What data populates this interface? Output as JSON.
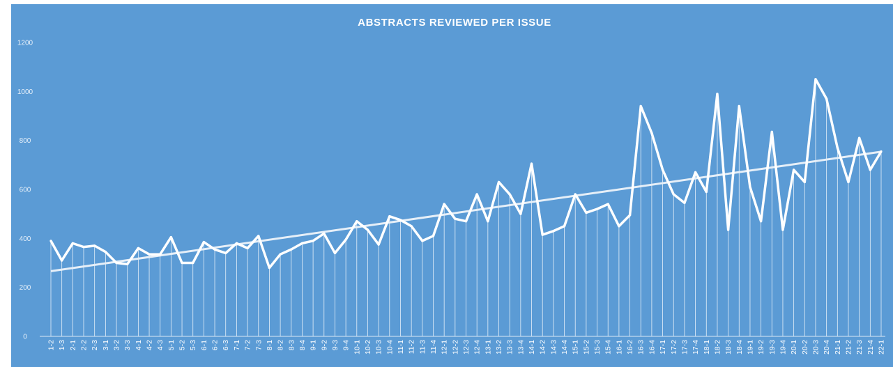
{
  "chart_data": {
    "type": "line",
    "title": "ABSTRACTS REVIEWED PER ISSUE",
    "xlabel": "",
    "ylabel": "",
    "ylim": [
      0,
      1200
    ],
    "yticks": [
      0,
      200,
      400,
      600,
      800,
      1000,
      1200
    ],
    "grid": false,
    "legend": "none",
    "colors": {
      "background": "#5B9BD5",
      "line": "#ffffff",
      "trend": "#e6eff8"
    },
    "categories": [
      "1-2",
      "1-3",
      "2-1",
      "2-2",
      "2-3",
      "3-1",
      "3-2",
      "3-3",
      "4-1",
      "4-2",
      "4-3",
      "5-1",
      "5-2",
      "5-3",
      "6-1",
      "6-2",
      "6-3",
      "7-1",
      "7-2",
      "7-3",
      "8-1",
      "8-2",
      "8-3",
      "8-4",
      "9-1",
      "9-2",
      "9-3",
      "9-4",
      "10-1",
      "10-2",
      "10-3",
      "10-4",
      "11-1",
      "11-2",
      "11-3",
      "11-4",
      "12-1",
      "12-2",
      "12-3",
      "12-4",
      "13-1",
      "13-2",
      "13-3",
      "13-4",
      "14-1",
      "14-2",
      "14-3",
      "14-4",
      "15-1",
      "15-2",
      "15-3",
      "15-4",
      "16-1",
      "16-2",
      "16-3",
      "16-4",
      "17-1",
      "17-2",
      "17-3",
      "17-4",
      "18-1",
      "18-2",
      "18-3",
      "18-4",
      "19-1",
      "19-2",
      "19-3",
      "19-4",
      "20-1",
      "20-2",
      "20-3",
      "20-4",
      "21-1",
      "21-2",
      "21-3",
      "21-4",
      "22-1"
    ],
    "series": [
      {
        "values": [
          390,
          310,
          380,
          365,
          370,
          345,
          300,
          295,
          360,
          335,
          335,
          405,
          300,
          300,
          385,
          355,
          340,
          380,
          360,
          410,
          280,
          335,
          355,
          380,
          390,
          420,
          340,
          395,
          470,
          435,
          375,
          490,
          475,
          450,
          390,
          410,
          540,
          480,
          470,
          580,
          470,
          630,
          580,
          500,
          705,
          415,
          430,
          450,
          580,
          505,
          520,
          540,
          450,
          495,
          940,
          830,
          680,
          580,
          545,
          670,
          590,
          990,
          435,
          940,
          610,
          470,
          835,
          435,
          680,
          630,
          1050,
          970,
          770,
          630,
          810,
          680,
          755
        ]
      }
    ],
    "trendline": {
      "type": "linear"
    }
  }
}
